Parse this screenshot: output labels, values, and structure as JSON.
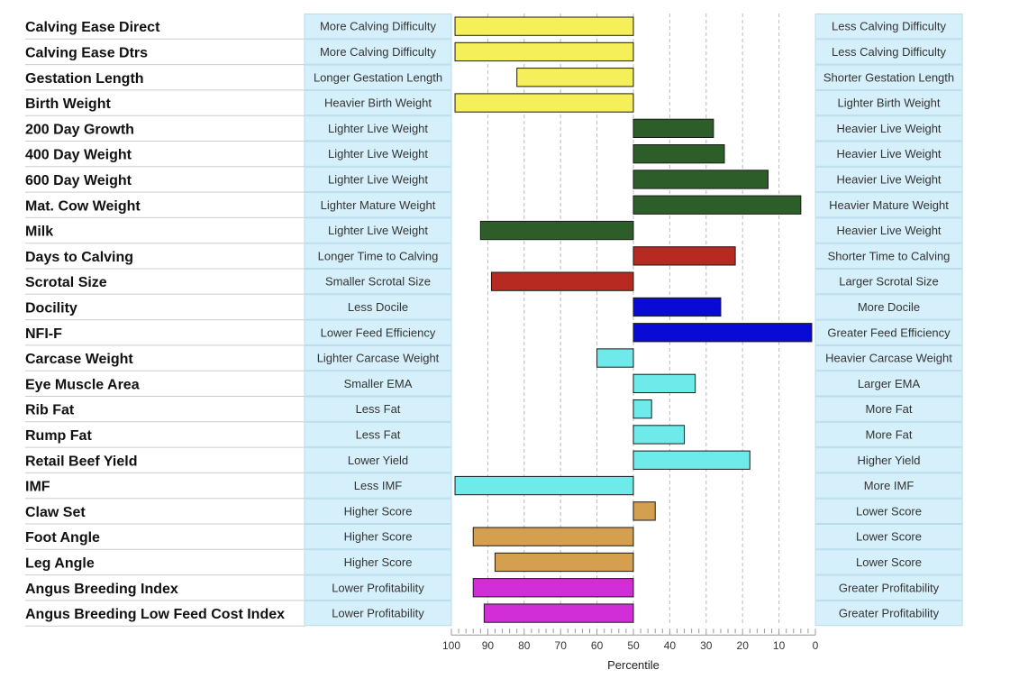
{
  "chart_data": {
    "type": "bar",
    "orientation": "horizontal",
    "xlabel": "Percentile",
    "xlim": [
      100,
      0
    ],
    "baseline": 50,
    "x_ticks": [
      100,
      90,
      80,
      70,
      60,
      50,
      40,
      30,
      20,
      10,
      0
    ],
    "grid": true,
    "rows": [
      {
        "trait": "Calving Ease Direct",
        "left_label": "More Calving Difficulty",
        "right_label": "Less Calving Difficulty",
        "value": 99,
        "color": "#f5ef5a"
      },
      {
        "trait": "Calving Ease Dtrs",
        "left_label": "More Calving Difficulty",
        "right_label": "Less Calving Difficulty",
        "value": 99,
        "color": "#f5ef5a"
      },
      {
        "trait": "Gestation Length",
        "left_label": "Longer Gestation Length",
        "right_label": "Shorter Gestation Length",
        "value": 82,
        "color": "#f5ef5a"
      },
      {
        "trait": "Birth Weight",
        "left_label": "Heavier Birth Weight",
        "right_label": "Lighter Birth Weight",
        "value": 99,
        "color": "#f5ef5a"
      },
      {
        "trait": "200 Day Growth",
        "left_label": "Lighter Live Weight",
        "right_label": "Heavier Live Weight",
        "value": 28,
        "color": "#2d5e2a"
      },
      {
        "trait": "400 Day Weight",
        "left_label": "Lighter Live Weight",
        "right_label": "Heavier Live Weight",
        "value": 25,
        "color": "#2d5e2a"
      },
      {
        "trait": "600 Day Weight",
        "left_label": "Lighter Live Weight",
        "right_label": "Heavier Live Weight",
        "value": 13,
        "color": "#2d5e2a"
      },
      {
        "trait": "Mat. Cow Weight",
        "left_label": "Lighter Mature Weight",
        "right_label": "Heavier Mature Weight",
        "value": 4,
        "color": "#2d5e2a"
      },
      {
        "trait": "Milk",
        "left_label": "Lighter Live Weight",
        "right_label": "Heavier Live Weight",
        "value": 92,
        "color": "#2d5e2a"
      },
      {
        "trait": "Days to Calving",
        "left_label": "Longer Time to Calving",
        "right_label": "Shorter Time to Calving",
        "value": 22,
        "color": "#b62a22"
      },
      {
        "trait": "Scrotal Size",
        "left_label": "Smaller Scrotal Size",
        "right_label": "Larger Scrotal Size",
        "value": 89,
        "color": "#b62a22"
      },
      {
        "trait": "Docility",
        "left_label": "Less Docile",
        "right_label": "More Docile",
        "value": 26,
        "color": "#0a0ad6"
      },
      {
        "trait": "NFI-F",
        "left_label": "Lower Feed Efficiency",
        "right_label": "Greater Feed Efficiency",
        "value": 1,
        "color": "#0a0ad6"
      },
      {
        "trait": "Carcase Weight",
        "left_label": "Lighter Carcase Weight",
        "right_label": "Heavier Carcase Weight",
        "value": 60,
        "color": "#6feaea"
      },
      {
        "trait": "Eye Muscle Area",
        "left_label": "Smaller EMA",
        "right_label": "Larger EMA",
        "value": 33,
        "color": "#6feaea"
      },
      {
        "trait": "Rib Fat",
        "left_label": "Less Fat",
        "right_label": "More Fat",
        "value": 45,
        "color": "#6feaea"
      },
      {
        "trait": "Rump Fat",
        "left_label": "Less Fat",
        "right_label": "More Fat",
        "value": 36,
        "color": "#6feaea"
      },
      {
        "trait": "Retail Beef Yield",
        "left_label": "Lower Yield",
        "right_label": "Higher Yield",
        "value": 18,
        "color": "#6feaea"
      },
      {
        "trait": "IMF",
        "left_label": "Less IMF",
        "right_label": "More IMF",
        "value": 99,
        "color": "#6feaea"
      },
      {
        "trait": "Claw Set",
        "left_label": "Higher Score",
        "right_label": "Lower Score",
        "value": 44,
        "color": "#d4a050"
      },
      {
        "trait": "Foot Angle",
        "left_label": "Higher Score",
        "right_label": "Lower Score",
        "value": 94,
        "color": "#d4a050"
      },
      {
        "trait": "Leg Angle",
        "left_label": "Higher Score",
        "right_label": "Lower Score",
        "value": 88,
        "color": "#d4a050"
      },
      {
        "trait": "Angus Breeding Index",
        "left_label": "Lower Profitability",
        "right_label": "Greater Profitability",
        "value": 94,
        "color": "#d22ed8"
      },
      {
        "trait": "Angus Breeding Low Feed Cost Index",
        "left_label": "Lower Profitability",
        "right_label": "Greater Profitability",
        "value": 91,
        "color": "#d22ed8"
      }
    ]
  },
  "colors": {
    "desc_box": "#d6f0fb",
    "desc_box_border": "#b8dcea",
    "grid_line": "#bbbbbb",
    "bar_stroke": "#1a1a1a"
  }
}
